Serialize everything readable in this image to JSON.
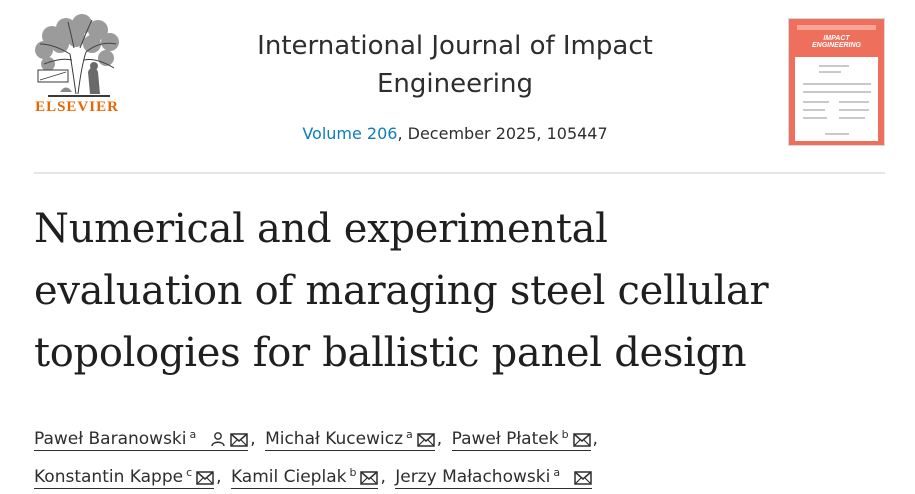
{
  "publisher": {
    "name": "ELSEVIER"
  },
  "journal": {
    "title_line1": "International Journal of Impact",
    "title_line2": "Engineering",
    "volume": "Volume 206",
    "issue_rest": ", December 2025, 105447"
  },
  "cover": {
    "title_line1": "IMPACT",
    "title_line2": "ENGINEERING"
  },
  "article": {
    "title_line1": "Numerical and experimental",
    "title_line2": "evaluation of maraging steel cellular",
    "title_line3": "topologies for ballistic panel design"
  },
  "authors": [
    {
      "name": "Paweł Baranowski",
      "affil": "a",
      "corresponding": true
    },
    {
      "name": "Michał Kucewicz",
      "affil": "a"
    },
    {
      "name": "Paweł Płatek",
      "affil": "b"
    },
    {
      "name": "Konstantin Kappe",
      "affil": "c"
    },
    {
      "name": "Kamil Cieplak",
      "affil": "b"
    },
    {
      "name": "Jerzy Małachowski",
      "affil": "a"
    }
  ],
  "colors": {
    "brand_orange": "#eb6500",
    "link_blue": "#0c7dbb",
    "cover_red": "#ef6f5d"
  },
  "icons": [
    "elsevier-tree-logo",
    "person-icon",
    "envelope-icon"
  ]
}
